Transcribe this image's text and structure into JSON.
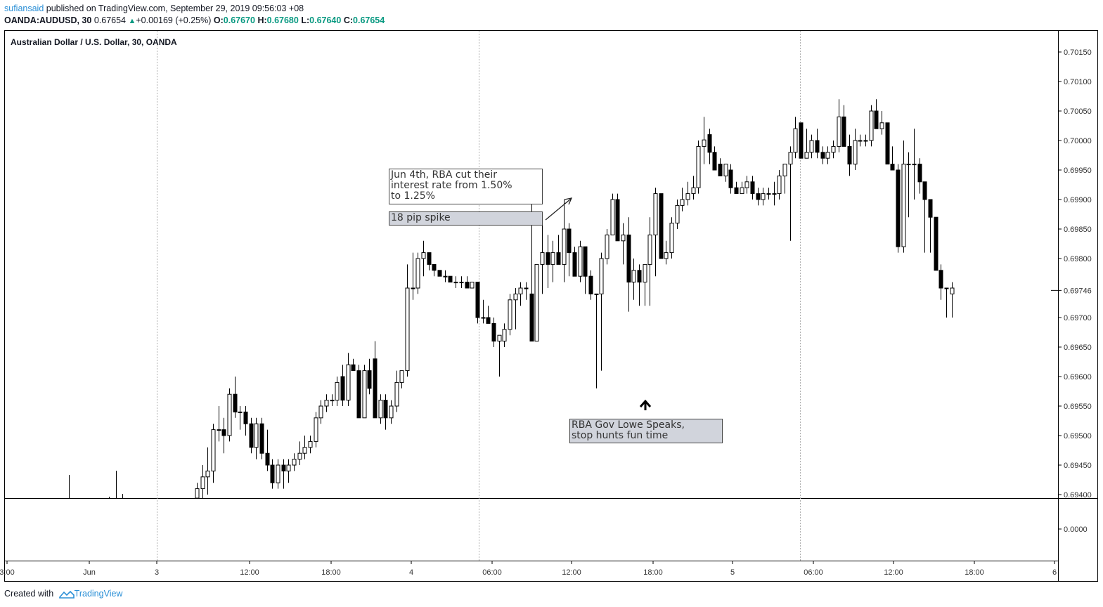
{
  "header": {
    "user": "sufiansaid",
    "published_text": " published on TradingView.com, September 29, 2019 09:56:03 +08",
    "symbol": "OANDA:AUDUSD, 30",
    "last": "0.67654",
    "change": "+0.00169 (+0.25%)",
    "open_label": "O:",
    "open": "0.67670",
    "high_label": "H:",
    "high": "0.67680",
    "low_label": "L:",
    "low": "0.67640",
    "close_label": "C:",
    "close": "0.67654"
  },
  "chart_title": "Australian Dollar / U.S. Dollar, 30, OANDA",
  "footer": {
    "created_with": "Created with",
    "brand": "TradingView"
  },
  "annotations": {
    "rate_cut": "Jun 4th, RBA cut their\ninterest rate from 1.50%\nto 1.25%",
    "spike": "18 pip spike",
    "lowe": "RBA Gov Lowe Speaks,\nstop hunts fun time"
  },
  "colors": {
    "up_body": "#ffffff",
    "down_body": "#000000",
    "up_text": "#089981",
    "link": "#2a8fd6",
    "annot_fill": "#d1d4dc"
  },
  "chart_data": {
    "type": "candlestick",
    "ylim": [
      0.694,
      0.7017
    ],
    "price_ticks": [
      "0.70150",
      "0.70100",
      "0.70050",
      "0.70000",
      "0.69950",
      "0.69900",
      "0.69850",
      "0.69800",
      "0.69746",
      "0.69700",
      "0.69650",
      "0.69600",
      "0.69550",
      "0.69500",
      "0.69450",
      "0.69400"
    ],
    "last_price": "0.69746",
    "indicator_tick": "0.0000",
    "x_ticks": [
      "3:00",
      "Jun",
      "3",
      "12:00",
      "18:00",
      "4",
      "06:00",
      "12:00",
      "18:00",
      "5",
      "06:00",
      "12:00",
      "18:00",
      "6"
    ],
    "candles": [
      {
        "o": 0.6938,
        "h": 0.6942,
        "l": 0.6936,
        "c": 0.6941
      },
      {
        "o": 0.6941,
        "h": 0.6945,
        "l": 0.6939,
        "c": 0.6943
      },
      {
        "o": 0.6943,
        "h": 0.6948,
        "l": 0.694,
        "c": 0.6944
      },
      {
        "o": 0.6944,
        "h": 0.6952,
        "l": 0.6942,
        "c": 0.6951
      },
      {
        "o": 0.6951,
        "h": 0.6955,
        "l": 0.6949,
        "c": 0.6951
      },
      {
        "o": 0.6951,
        "h": 0.6953,
        "l": 0.6947,
        "c": 0.695
      },
      {
        "o": 0.695,
        "h": 0.6958,
        "l": 0.6949,
        "c": 0.6957
      },
      {
        "o": 0.6957,
        "h": 0.696,
        "l": 0.6953,
        "c": 0.6954
      },
      {
        "o": 0.6954,
        "h": 0.6955,
        "l": 0.6951,
        "c": 0.6954
      },
      {
        "o": 0.6954,
        "h": 0.6955,
        "l": 0.695,
        "c": 0.6952
      },
      {
        "o": 0.6952,
        "h": 0.6953,
        "l": 0.6947,
        "c": 0.6948
      },
      {
        "o": 0.6948,
        "h": 0.6953,
        "l": 0.6946,
        "c": 0.6952
      },
      {
        "o": 0.6952,
        "h": 0.6953,
        "l": 0.6946,
        "c": 0.6947
      },
      {
        "o": 0.6947,
        "h": 0.6951,
        "l": 0.6944,
        "c": 0.6945
      },
      {
        "o": 0.6945,
        "h": 0.6946,
        "l": 0.6941,
        "c": 0.6942
      },
      {
        "o": 0.6942,
        "h": 0.6946,
        "l": 0.6941,
        "c": 0.6945
      },
      {
        "o": 0.6945,
        "h": 0.6946,
        "l": 0.6941,
        "c": 0.6944
      },
      {
        "o": 0.6944,
        "h": 0.6946,
        "l": 0.6942,
        "c": 0.6945
      },
      {
        "o": 0.6945,
        "h": 0.6947,
        "l": 0.6944,
        "c": 0.6946
      },
      {
        "o": 0.6946,
        "h": 0.6949,
        "l": 0.6945,
        "c": 0.6947
      },
      {
        "o": 0.6947,
        "h": 0.695,
        "l": 0.6946,
        "c": 0.6948
      },
      {
        "o": 0.6948,
        "h": 0.695,
        "l": 0.6947,
        "c": 0.6949
      },
      {
        "o": 0.6949,
        "h": 0.6954,
        "l": 0.6948,
        "c": 0.6953
      },
      {
        "o": 0.6953,
        "h": 0.6956,
        "l": 0.6952,
        "c": 0.6955
      },
      {
        "o": 0.6955,
        "h": 0.6957,
        "l": 0.6954,
        "c": 0.6956
      },
      {
        "o": 0.6956,
        "h": 0.6957,
        "l": 0.6955,
        "c": 0.6956
      },
      {
        "o": 0.6956,
        "h": 0.696,
        "l": 0.6955,
        "c": 0.6959
      },
      {
        "o": 0.696,
        "h": 0.6962,
        "l": 0.6955,
        "c": 0.6956
      },
      {
        "o": 0.6956,
        "h": 0.6964,
        "l": 0.6955,
        "c": 0.6962
      },
      {
        "o": 0.6962,
        "h": 0.6963,
        "l": 0.6961,
        "c": 0.6961
      },
      {
        "o": 0.6961,
        "h": 0.6962,
        "l": 0.6953,
        "c": 0.6953
      },
      {
        "o": 0.6953,
        "h": 0.6962,
        "l": 0.6953,
        "c": 0.6961
      },
      {
        "o": 0.6961,
        "h": 0.6963,
        "l": 0.6957,
        "c": 0.6958
      },
      {
        "o": 0.6963,
        "h": 0.6966,
        "l": 0.6953,
        "c": 0.6953
      },
      {
        "o": 0.6953,
        "h": 0.6957,
        "l": 0.6952,
        "c": 0.6956
      },
      {
        "o": 0.6956,
        "h": 0.6957,
        "l": 0.6951,
        "c": 0.6953
      },
      {
        "o": 0.6953,
        "h": 0.6956,
        "l": 0.6952,
        "c": 0.6955
      },
      {
        "o": 0.6955,
        "h": 0.6961,
        "l": 0.6954,
        "c": 0.6959
      },
      {
        "o": 0.6959,
        "h": 0.6961,
        "l": 0.6958,
        "c": 0.6961
      },
      {
        "o": 0.6961,
        "h": 0.6979,
        "l": 0.696,
        "c": 0.6975
      },
      {
        "o": 0.6975,
        "h": 0.6981,
        "l": 0.6973,
        "c": 0.6975
      },
      {
        "o": 0.6975,
        "h": 0.6981,
        "l": 0.6974,
        "c": 0.698
      },
      {
        "o": 0.698,
        "h": 0.6983,
        "l": 0.6977,
        "c": 0.6981
      },
      {
        "o": 0.6981,
        "h": 0.6981,
        "l": 0.6978,
        "c": 0.6979
      },
      {
        "o": 0.6979,
        "h": 0.6979,
        "l": 0.6977,
        "c": 0.6978
      },
      {
        "o": 0.6978,
        "h": 0.6978,
        "l": 0.6977,
        "c": 0.6977
      },
      {
        "o": 0.6977,
        "h": 0.6978,
        "l": 0.6976,
        "c": 0.6977
      },
      {
        "o": 0.6977,
        "h": 0.6977,
        "l": 0.6976,
        "c": 0.6976
      },
      {
        "o": 0.6976,
        "h": 0.6977,
        "l": 0.6975,
        "c": 0.6976
      },
      {
        "o": 0.6976,
        "h": 0.6977,
        "l": 0.6975,
        "c": 0.6976
      },
      {
        "o": 0.6976,
        "h": 0.6977,
        "l": 0.6975,
        "c": 0.6975
      },
      {
        "o": 0.6975,
        "h": 0.6976,
        "l": 0.6975,
        "c": 0.6976
      },
      {
        "o": 0.6976,
        "h": 0.6976,
        "l": 0.6969,
        "c": 0.697
      },
      {
        "o": 0.697,
        "h": 0.6973,
        "l": 0.6969,
        "c": 0.697
      },
      {
        "o": 0.697,
        "h": 0.6972,
        "l": 0.6969,
        "c": 0.6969
      },
      {
        "o": 0.6969,
        "h": 0.697,
        "l": 0.6965,
        "c": 0.6966
      },
      {
        "o": 0.6966,
        "h": 0.6967,
        "l": 0.696,
        "c": 0.6967
      },
      {
        "o": 0.6966,
        "h": 0.6969,
        "l": 0.6965,
        "c": 0.6968
      },
      {
        "o": 0.6968,
        "h": 0.6974,
        "l": 0.6967,
        "c": 0.6973
      },
      {
        "o": 0.6973,
        "h": 0.6975,
        "l": 0.6968,
        "c": 0.6974
      },
      {
        "o": 0.6974,
        "h": 0.6976,
        "l": 0.6972,
        "c": 0.6975
      },
      {
        "o": 0.6975,
        "h": 0.6976,
        "l": 0.6973,
        "c": 0.6975
      },
      {
        "o": 0.6974,
        "h": 0.6993,
        "l": 0.6966,
        "c": 0.6966
      },
      {
        "o": 0.6966,
        "h": 0.6979,
        "l": 0.6966,
        "c": 0.6979
      },
      {
        "o": 0.6979,
        "h": 0.6986,
        "l": 0.6974,
        "c": 0.6981
      },
      {
        "o": 0.6981,
        "h": 0.6984,
        "l": 0.6975,
        "c": 0.6979
      },
      {
        "o": 0.6979,
        "h": 0.6983,
        "l": 0.6976,
        "c": 0.6981
      },
      {
        "o": 0.6981,
        "h": 0.6984,
        "l": 0.6979,
        "c": 0.6979
      },
      {
        "o": 0.6979,
        "h": 0.699,
        "l": 0.6976,
        "c": 0.6985
      },
      {
        "o": 0.6985,
        "h": 0.6986,
        "l": 0.6977,
        "c": 0.6981
      },
      {
        "o": 0.6981,
        "h": 0.6982,
        "l": 0.6977,
        "c": 0.6977
      },
      {
        "o": 0.6977,
        "h": 0.6983,
        "l": 0.6976,
        "c": 0.6982
      },
      {
        "o": 0.6982,
        "h": 0.6982,
        "l": 0.6974,
        "c": 0.6977
      },
      {
        "o": 0.6977,
        "h": 0.6978,
        "l": 0.6973,
        "c": 0.6974
      },
      {
        "o": 0.6974,
        "h": 0.6974,
        "l": 0.6958,
        "c": 0.6974
      },
      {
        "o": 0.6974,
        "h": 0.6981,
        "l": 0.6961,
        "c": 0.698
      },
      {
        "o": 0.698,
        "h": 0.6985,
        "l": 0.6979,
        "c": 0.6984
      },
      {
        "o": 0.6984,
        "h": 0.6991,
        "l": 0.6984,
        "c": 0.699
      },
      {
        "o": 0.699,
        "h": 0.6991,
        "l": 0.6983,
        "c": 0.6983
      },
      {
        "o": 0.6983,
        "h": 0.6986,
        "l": 0.6979,
        "c": 0.6984
      },
      {
        "o": 0.6984,
        "h": 0.6987,
        "l": 0.6971,
        "c": 0.6976
      },
      {
        "o": 0.6976,
        "h": 0.698,
        "l": 0.6973,
        "c": 0.6978
      },
      {
        "o": 0.6978,
        "h": 0.6979,
        "l": 0.6972,
        "c": 0.6976
      },
      {
        "o": 0.6976,
        "h": 0.6979,
        "l": 0.6972,
        "c": 0.6979
      },
      {
        "o": 0.6979,
        "h": 0.6987,
        "l": 0.6972,
        "c": 0.6984
      },
      {
        "o": 0.6984,
        "h": 0.6992,
        "l": 0.6977,
        "c": 0.6991
      },
      {
        "o": 0.6991,
        "h": 0.6991,
        "l": 0.698,
        "c": 0.698
      },
      {
        "o": 0.698,
        "h": 0.6983,
        "l": 0.6979,
        "c": 0.6981
      },
      {
        "o": 0.6981,
        "h": 0.6987,
        "l": 0.698,
        "c": 0.6986
      },
      {
        "o": 0.6986,
        "h": 0.699,
        "l": 0.6985,
        "c": 0.6989
      },
      {
        "o": 0.6989,
        "h": 0.6992,
        "l": 0.6988,
        "c": 0.699
      },
      {
        "o": 0.699,
        "h": 0.6993,
        "l": 0.6989,
        "c": 0.6991
      },
      {
        "o": 0.6991,
        "h": 0.6994,
        "l": 0.699,
        "c": 0.6992
      },
      {
        "o": 0.6992,
        "h": 0.7,
        "l": 0.6991,
        "c": 0.6999
      },
      {
        "o": 0.6999,
        "h": 0.7004,
        "l": 0.6996,
        "c": 0.70001
      },
      {
        "o": 0.7001,
        "h": 0.7002,
        "l": 0.6996,
        "c": 0.6998
      },
      {
        "o": 0.6998,
        "h": 0.6999,
        "l": 0.6995,
        "c": 0.6995
      },
      {
        "o": 0.6996,
        "h": 0.6997,
        "l": 0.6994,
        "c": 0.6994
      },
      {
        "o": 0.6994,
        "h": 0.6996,
        "l": 0.6993,
        "c": 0.6996
      },
      {
        "o": 0.6995,
        "h": 0.6996,
        "l": 0.6991,
        "c": 0.6992
      },
      {
        "o": 0.6992,
        "h": 0.6993,
        "l": 0.6991,
        "c": 0.6991
      },
      {
        "o": 0.6991,
        "h": 0.6993,
        "l": 0.6991,
        "c": 0.6992
      },
      {
        "o": 0.6992,
        "h": 0.6994,
        "l": 0.6991,
        "c": 0.6993
      },
      {
        "o": 0.6993,
        "h": 0.6994,
        "l": 0.699,
        "c": 0.6991
      },
      {
        "o": 0.6991,
        "h": 0.6992,
        "l": 0.6989,
        "c": 0.699
      },
      {
        "o": 0.699,
        "h": 0.6992,
        "l": 0.6989,
        "c": 0.6991
      },
      {
        "o": 0.6991,
        "h": 0.6992,
        "l": 0.699,
        "c": 0.6991
      },
      {
        "o": 0.6991,
        "h": 0.6993,
        "l": 0.6989,
        "c": 0.6991
      },
      {
        "o": 0.6991,
        "h": 0.6995,
        "l": 0.699,
        "c": 0.6994
      },
      {
        "o": 0.6994,
        "h": 0.6996,
        "l": 0.6991,
        "c": 0.6996
      },
      {
        "o": 0.6996,
        "h": 0.6999,
        "l": 0.6983,
        "c": 0.6998
      },
      {
        "o": 0.6998,
        "h": 0.7004,
        "l": 0.6997,
        "c": 0.7002
      },
      {
        "o": 0.7003,
        "h": 0.7003,
        "l": 0.6997,
        "c": 0.6997
      },
      {
        "o": 0.6997,
        "h": 0.7002,
        "l": 0.6997,
        "c": 0.6998
      },
      {
        "o": 0.6998,
        "h": 0.7001,
        "l": 0.6997,
        "c": 0.7
      },
      {
        "o": 0.7,
        "h": 0.7002,
        "l": 0.6997,
        "c": 0.6998
      },
      {
        "o": 0.6998,
        "h": 0.6999,
        "l": 0.6996,
        "c": 0.6997
      },
      {
        "o": 0.6997,
        "h": 0.6999,
        "l": 0.6996,
        "c": 0.6998
      },
      {
        "o": 0.6998,
        "h": 0.7,
        "l": 0.6997,
        "c": 0.6999
      },
      {
        "o": 0.6999,
        "h": 0.7007,
        "l": 0.6998,
        "c": 0.7004
      },
      {
        "o": 0.7004,
        "h": 0.7006,
        "l": 0.6999,
        "c": 0.6999
      },
      {
        "o": 0.6999,
        "h": 0.7001,
        "l": 0.6994,
        "c": 0.6996
      },
      {
        "o": 0.6996,
        "h": 0.7002,
        "l": 0.6995,
        "c": 0.7
      },
      {
        "o": 0.7,
        "h": 0.7001,
        "l": 0.6999,
        "c": 0.7
      },
      {
        "o": 0.7,
        "h": 0.7001,
        "l": 0.6999,
        "c": 0.7
      },
      {
        "o": 0.7,
        "h": 0.7006,
        "l": 0.6999,
        "c": 0.7005
      },
      {
        "o": 0.7005,
        "h": 0.7007,
        "l": 0.7002,
        "c": 0.7002
      },
      {
        "o": 0.7002,
        "h": 0.7005,
        "l": 0.7001,
        "c": 0.7003
      },
      {
        "o": 0.7003,
        "h": 0.7003,
        "l": 0.6996,
        "c": 0.6996
      },
      {
        "o": 0.6996,
        "h": 0.6999,
        "l": 0.6995,
        "c": 0.6995
      },
      {
        "o": 0.6995,
        "h": 0.6996,
        "l": 0.6981,
        "c": 0.6982
      },
      {
        "o": 0.6982,
        "h": 0.7,
        "l": 0.6981,
        "c": 0.6996
      },
      {
        "o": 0.6996,
        "h": 0.6998,
        "l": 0.6987,
        "c": 0.6996
      },
      {
        "o": 0.6996,
        "h": 0.7002,
        "l": 0.699,
        "c": 0.6996
      },
      {
        "o": 0.6996,
        "h": 0.6997,
        "l": 0.6991,
        "c": 0.6993
      },
      {
        "o": 0.6993,
        "h": 0.6993,
        "l": 0.6981,
        "c": 0.699
      },
      {
        "o": 0.699,
        "h": 0.699,
        "l": 0.6981,
        "c": 0.6987
      },
      {
        "o": 0.6987,
        "h": 0.6987,
        "l": 0.6978,
        "c": 0.6978
      },
      {
        "o": 0.6978,
        "h": 0.6979,
        "l": 0.6973,
        "c": 0.6975
      },
      {
        "o": 0.6975,
        "h": 0.6975,
        "l": 0.697,
        "c": 0.6975
      },
      {
        "o": 0.6974,
        "h": 0.6976,
        "l": 0.697,
        "c": 0.6975
      }
    ]
  }
}
